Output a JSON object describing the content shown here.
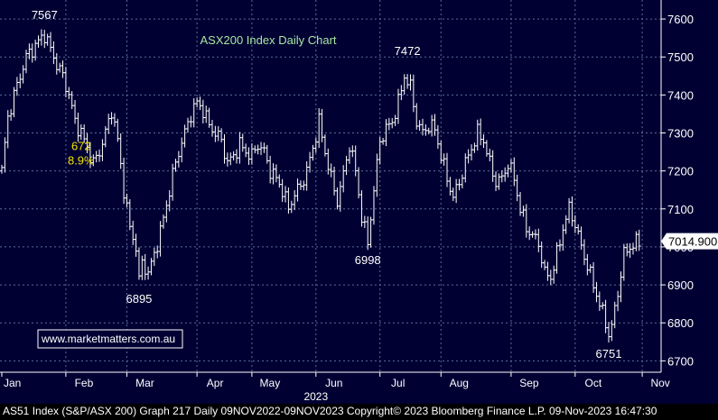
{
  "chart_data": {
    "type": "ohlc",
    "title": "ASX200 Index Daily Chart",
    "xlabel": "",
    "ylabel": "",
    "ylim": [
      6670,
      7650
    ],
    "yticks": [
      6700,
      6800,
      6900,
      7000,
      7100,
      7200,
      7300,
      7400,
      7500,
      7600
    ],
    "xticks": [
      {
        "label": "Jan",
        "day": 0
      },
      {
        "label": "Feb",
        "day": 21
      },
      {
        "label": "Mar",
        "day": 41
      },
      {
        "label": "Apr",
        "day": 64
      },
      {
        "label": "May",
        "day": 82
      },
      {
        "label": "Jun",
        "day": 103
      },
      {
        "label": "Jul",
        "day": 124
      },
      {
        "label": "Aug",
        "day": 144
      },
      {
        "label": "Sep",
        "day": 167
      },
      {
        "label": "Oct",
        "day": 188
      },
      {
        "label": "Nov",
        "day": 210
      }
    ],
    "year_label": "2023",
    "last_price": "7014.900",
    "annotations": [
      {
        "text": "7567",
        "day": 14,
        "value": 7567,
        "pos": "above"
      },
      {
        "text": "6895",
        "day": 45,
        "value": 6895,
        "pos": "below"
      },
      {
        "text": "7472",
        "day": 133,
        "value": 7472,
        "pos": "above"
      },
      {
        "text": "6998",
        "day": 120,
        "value": 6998,
        "pos": "below"
      },
      {
        "text": "6751",
        "day": 199,
        "value": 6751,
        "pos": "below"
      }
    ],
    "move_label": {
      "points": "672",
      "pct": "8.9%",
      "day": 26,
      "value": 7255
    },
    "close_path": [
      [
        0,
        7200
      ],
      [
        2,
        7340
      ],
      [
        4,
        7400
      ],
      [
        6,
        7450
      ],
      [
        8,
        7500
      ],
      [
        10,
        7520
      ],
      [
        12,
        7540
      ],
      [
        14,
        7560
      ],
      [
        16,
        7520
      ],
      [
        18,
        7480
      ],
      [
        20,
        7450
      ],
      [
        22,
        7400
      ],
      [
        24,
        7330
      ],
      [
        26,
        7300
      ],
      [
        28,
        7260
      ],
      [
        30,
        7220
      ],
      [
        32,
        7250
      ],
      [
        34,
        7300
      ],
      [
        36,
        7360
      ],
      [
        38,
        7280
      ],
      [
        40,
        7150
      ],
      [
        42,
        7050
      ],
      [
        44,
        7000
      ],
      [
        45,
        6910
      ],
      [
        46,
        6960
      ],
      [
        48,
        6930
      ],
      [
        50,
        6980
      ],
      [
        52,
        7040
      ],
      [
        54,
        7110
      ],
      [
        56,
        7190
      ],
      [
        58,
        7250
      ],
      [
        60,
        7300
      ],
      [
        62,
        7350
      ],
      [
        64,
        7380
      ],
      [
        66,
        7360
      ],
      [
        68,
        7320
      ],
      [
        70,
        7300
      ],
      [
        72,
        7280
      ],
      [
        74,
        7220
      ],
      [
        76,
        7240
      ],
      [
        78,
        7270
      ],
      [
        80,
        7250
      ],
      [
        82,
        7240
      ],
      [
        84,
        7270
      ],
      [
        86,
        7250
      ],
      [
        88,
        7200
      ],
      [
        90,
        7180
      ],
      [
        92,
        7150
      ],
      [
        94,
        7100
      ],
      [
        96,
        7140
      ],
      [
        98,
        7160
      ],
      [
        100,
        7200
      ],
      [
        102,
        7260
      ],
      [
        104,
        7330
      ],
      [
        106,
        7250
      ],
      [
        108,
        7180
      ],
      [
        110,
        7120
      ],
      [
        112,
        7190
      ],
      [
        114,
        7270
      ],
      [
        116,
        7200
      ],
      [
        118,
        7080
      ],
      [
        120,
        7010
      ],
      [
        122,
        7150
      ],
      [
        124,
        7280
      ],
      [
        126,
        7310
      ],
      [
        128,
        7330
      ],
      [
        130,
        7380
      ],
      [
        132,
        7450
      ],
      [
        134,
        7420
      ],
      [
        136,
        7330
      ],
      [
        138,
        7300
      ],
      [
        140,
        7320
      ],
      [
        142,
        7310
      ],
      [
        144,
        7240
      ],
      [
        146,
        7180
      ],
      [
        148,
        7130
      ],
      [
        150,
        7170
      ],
      [
        152,
        7220
      ],
      [
        154,
        7260
      ],
      [
        156,
        7300
      ],
      [
        158,
        7280
      ],
      [
        160,
        7220
      ],
      [
        162,
        7170
      ],
      [
        164,
        7180
      ],
      [
        166,
        7220
      ],
      [
        168,
        7180
      ],
      [
        170,
        7100
      ],
      [
        172,
        7050
      ],
      [
        174,
        7030
      ],
      [
        176,
        7010
      ],
      [
        178,
        6930
      ],
      [
        180,
        6920
      ],
      [
        182,
        6980
      ],
      [
        184,
        7050
      ],
      [
        186,
        7100
      ],
      [
        188,
        7060
      ],
      [
        190,
        7000
      ],
      [
        192,
        6950
      ],
      [
        194,
        6900
      ],
      [
        196,
        6850
      ],
      [
        198,
        6800
      ],
      [
        199,
        6770
      ],
      [
        200,
        6790
      ],
      [
        202,
        6880
      ],
      [
        204,
        6980
      ],
      [
        206,
        7000
      ],
      [
        208,
        7010
      ],
      [
        209,
        7015
      ]
    ]
  },
  "badge": {
    "text": "www.marketmatters.com.au"
  },
  "footer": {
    "text": "AS51 Index (S&P/ASX 200) Graph 217  Daily 09NOV2022-09NOV2023 Copyright© 2023 Bloomberg Finance L.P. 09-Nov-2023 16:47:30"
  },
  "colors": {
    "background": "#000033",
    "price_bar": "#ffffff",
    "grid": "#5a6e96",
    "title": "#a8e8a0",
    "move_label": "#f0e000",
    "badge_border": "#ffffff",
    "badge_text": "#ffffff",
    "badge_bg": "#000033"
  }
}
